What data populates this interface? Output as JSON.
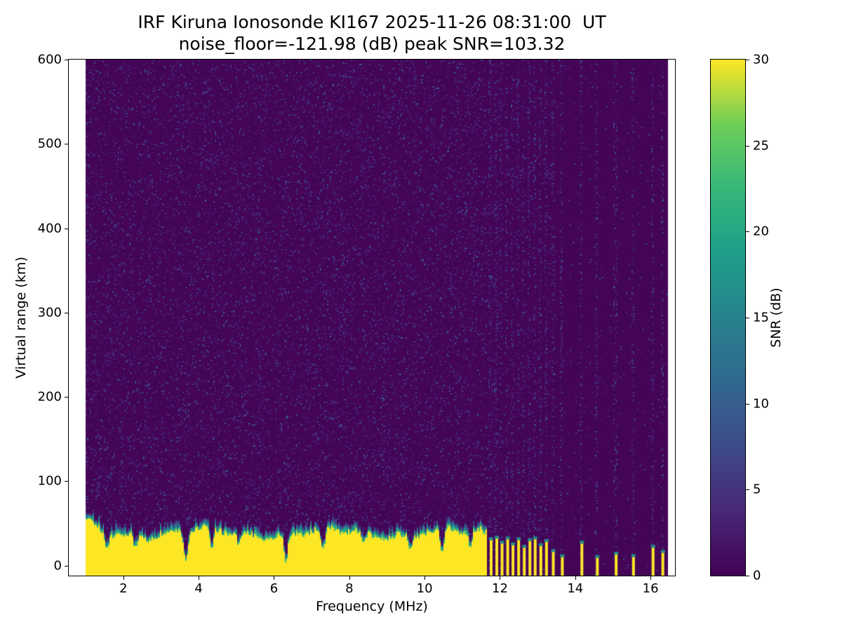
{
  "chart_data": {
    "type": "heatmap",
    "title": "IRF Kiruna Ionosonde KI167 2025-11-26 08:31:00  UT",
    "subtitle": "noise_floor=-121.98 (dB) peak SNR=103.32",
    "station": "IRF Kiruna Ionosonde",
    "station_code": "KI167",
    "datetime_ut": "2025-11-26 08:31:00",
    "noise_floor_db": -121.98,
    "peak_snr_db": 103.32,
    "xlabel": "Frequency (MHz)",
    "ylabel": "Virtual range (km)",
    "colorbar_label": "SNR (dB)",
    "colormap": "viridis",
    "xlim": [
      0.55,
      16.65
    ],
    "ylim": [
      -12,
      600
    ],
    "clim": [
      0,
      30
    ],
    "xticks": [
      2,
      4,
      6,
      8,
      10,
      12,
      14,
      16
    ],
    "yticks": [
      0,
      100,
      200,
      300,
      400,
      500,
      600
    ],
    "colorbar_ticks": [
      0,
      5,
      10,
      15,
      20,
      25,
      30
    ],
    "grid": false,
    "legend": "colorbar-right",
    "sweep": {
      "freq_start_mhz": 1.0,
      "freq_end_mhz": 16.45,
      "stepped_above_mhz": 11.65,
      "background_snr_db": [
        0,
        2
      ],
      "speckle_snr_db": [
        2,
        14
      ],
      "ground_clutter": {
        "freq_range_mhz": [
          1.0,
          11.65
        ],
        "top_km_typical": 40,
        "snr_db": 30
      },
      "notches": [
        {
          "f": 1.55,
          "depth": 18
        },
        {
          "f": 2.3,
          "depth": 14
        },
        {
          "f": 3.65,
          "depth": 34
        },
        {
          "f": 4.32,
          "depth": 26
        },
        {
          "f": 5.05,
          "depth": 14
        },
        {
          "f": 6.3,
          "depth": 34
        },
        {
          "f": 7.28,
          "depth": 30
        },
        {
          "f": 8.35,
          "depth": 16
        },
        {
          "f": 9.6,
          "depth": 18
        },
        {
          "f": 10.45,
          "depth": 30
        },
        {
          "f": 11.2,
          "depth": 22
        }
      ],
      "stripes": [
        {
          "f": 11.73,
          "top": 30
        },
        {
          "f": 11.88,
          "top": 32
        },
        {
          "f": 12.02,
          "top": 26
        },
        {
          "f": 12.17,
          "top": 31
        },
        {
          "f": 12.31,
          "top": 24
        },
        {
          "f": 12.46,
          "top": 30
        },
        {
          "f": 12.61,
          "top": 21
        },
        {
          "f": 12.76,
          "top": 29
        },
        {
          "f": 12.9,
          "top": 31
        },
        {
          "f": 13.05,
          "top": 23
        },
        {
          "f": 13.2,
          "top": 28
        },
        {
          "f": 13.38,
          "top": 16
        },
        {
          "f": 13.62,
          "top": 10
        },
        {
          "f": 14.14,
          "top": 26
        },
        {
          "f": 14.55,
          "top": 9
        },
        {
          "f": 15.05,
          "top": 13
        },
        {
          "f": 15.51,
          "top": 10
        },
        {
          "f": 16.03,
          "top": 21
        },
        {
          "f": 16.29,
          "top": 15
        }
      ]
    }
  }
}
